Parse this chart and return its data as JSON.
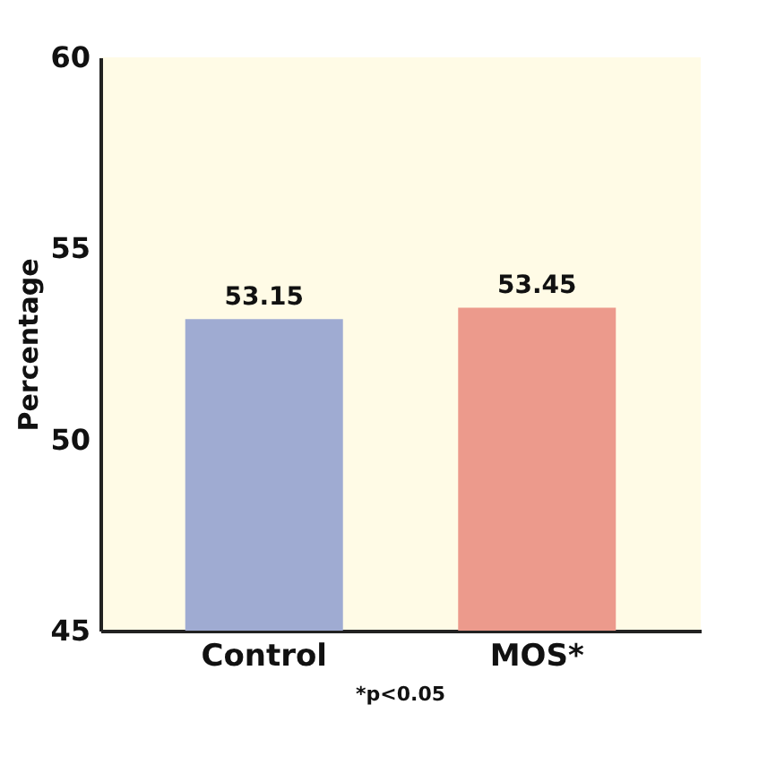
{
  "chart_data": {
    "type": "bar",
    "categories": [
      "Control",
      "MOS*"
    ],
    "values": [
      53.15,
      53.45
    ],
    "colors": [
      "#9fabd2",
      "#ec9a8c"
    ],
    "ylabel": "Percentage",
    "ylim": [
      45,
      60
    ],
    "yticks": [
      45,
      50,
      55,
      60
    ],
    "grid": false,
    "data_labels": true,
    "annotations": [
      "*p<0.05"
    ]
  }
}
